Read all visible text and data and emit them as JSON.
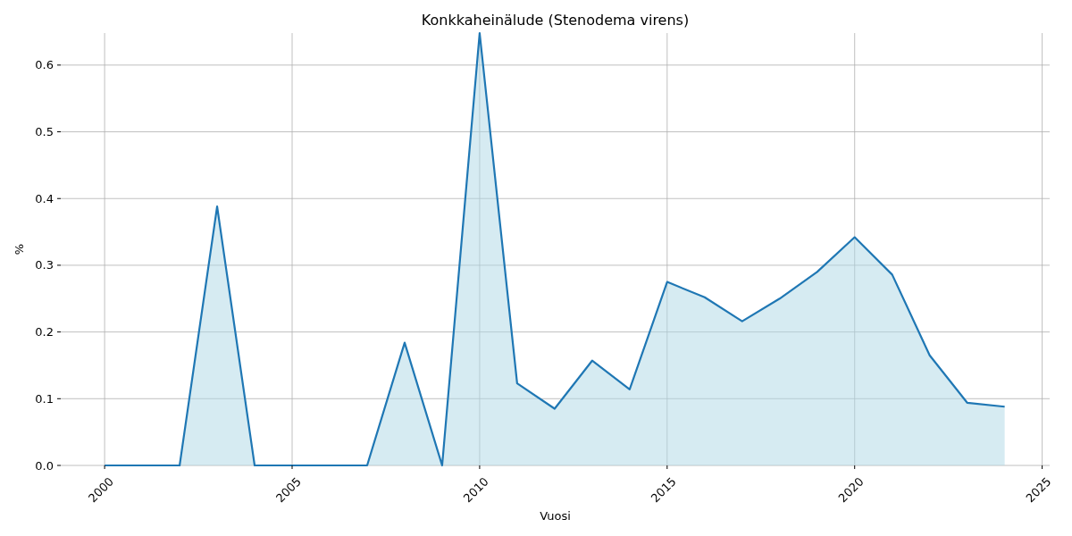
{
  "chart_data": {
    "type": "area",
    "title": "Konkkaheinälude (Stenodema virens)",
    "xlabel": "Vuosi",
    "ylabel": "%",
    "x": [
      2000,
      2001,
      2002,
      2003,
      2004,
      2005,
      2006,
      2007,
      2008,
      2009,
      2010,
      2011,
      2012,
      2013,
      2014,
      2015,
      2016,
      2017,
      2018,
      2019,
      2020,
      2021,
      2022,
      2023,
      2024
    ],
    "series": [
      {
        "color": "#1f77b4",
        "values": [
          0,
          0,
          0,
          0.388,
          0,
          0,
          0,
          0,
          0.184,
          0,
          0.648,
          0.123,
          0.085,
          0.157,
          0.114,
          0.275,
          0.252,
          0.216,
          0.25,
          0.29,
          0.342,
          0.286,
          0.165,
          0.094,
          0.088
        ]
      }
    ],
    "xlim": [
      1998.83,
      2025.2
    ],
    "xticks": [
      2000,
      2005,
      2010,
      2015,
      2020,
      2025
    ],
    "ylim": [
      0,
      0.648
    ],
    "yticks": [
      {
        "value": 0,
        "label": "0.0"
      },
      0.1,
      0.2,
      0.3,
      0.4,
      0.5,
      0.6
    ],
    "grid": true
  }
}
